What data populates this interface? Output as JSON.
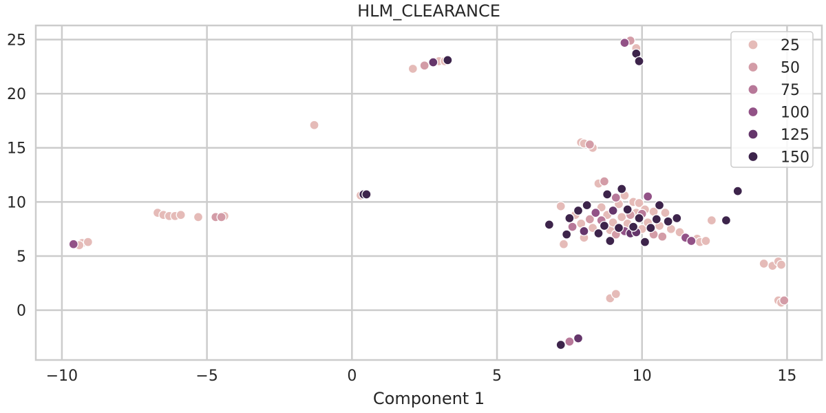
{
  "chart_data": {
    "type": "scatter",
    "title": "HLM_CLEARANCE",
    "xlabel": "Component 1",
    "ylabel": "",
    "xlim": [
      -10.9,
      16.2
    ],
    "ylim": [
      -4.6,
      26.3
    ],
    "xticks": [
      -10,
      -5,
      0,
      5,
      10,
      15
    ],
    "xtick_labels": [
      "−10",
      "−5",
      "0",
      "5",
      "10",
      "15"
    ],
    "yticks": [
      0,
      5,
      10,
      15,
      20,
      25
    ],
    "ytick_labels": [
      "0",
      "5",
      "10",
      "15",
      "20",
      "25"
    ],
    "grid": true,
    "legend_position": "top-right",
    "legend": [
      {
        "label": "25",
        "value": 25
      },
      {
        "label": "50",
        "value": 50
      },
      {
        "label": "75",
        "value": 75
      },
      {
        "label": "100",
        "value": 100
      },
      {
        "label": "125",
        "value": 125
      },
      {
        "label": "150",
        "value": 150
      }
    ],
    "points": [
      [
        -9.6,
        6.1,
        100
      ],
      [
        -9.3,
        6.2,
        25
      ],
      [
        -9.1,
        6.3,
        25
      ],
      [
        -9.4,
        6.0,
        25
      ],
      [
        -6.7,
        9.0,
        25
      ],
      [
        -6.5,
        8.8,
        25
      ],
      [
        -6.3,
        8.7,
        25
      ],
      [
        -6.1,
        8.7,
        25
      ],
      [
        -5.9,
        8.8,
        25
      ],
      [
        -5.3,
        8.6,
        25
      ],
      [
        -4.7,
        8.6,
        50
      ],
      [
        -4.5,
        8.6,
        50
      ],
      [
        -4.4,
        8.7,
        25
      ],
      [
        -1.3,
        17.1,
        25
      ],
      [
        0.3,
        10.6,
        25
      ],
      [
        0.4,
        10.7,
        150
      ],
      [
        0.5,
        10.7,
        150
      ],
      [
        2.1,
        22.3,
        25
      ],
      [
        2.5,
        22.6,
        50
      ],
      [
        2.8,
        22.9,
        125
      ],
      [
        3.0,
        23.0,
        25
      ],
      [
        3.2,
        23.0,
        25
      ],
      [
        3.3,
        23.1,
        150
      ],
      [
        9.4,
        24.7,
        100
      ],
      [
        9.6,
        24.9,
        50
      ],
      [
        9.8,
        24.2,
        25
      ],
      [
        9.8,
        23.7,
        150
      ],
      [
        9.9,
        23.0,
        150
      ],
      [
        7.9,
        15.5,
        25
      ],
      [
        8.0,
        15.4,
        25
      ],
      [
        8.2,
        15.3,
        50
      ],
      [
        8.3,
        15.0,
        25
      ],
      [
        6.8,
        7.9,
        150
      ],
      [
        7.2,
        9.6,
        25
      ],
      [
        7.3,
        6.1,
        25
      ],
      [
        7.4,
        7.0,
        150
      ],
      [
        7.5,
        8.5,
        150
      ],
      [
        7.6,
        7.7,
        75
      ],
      [
        7.7,
        8.8,
        25
      ],
      [
        7.8,
        9.2,
        150
      ],
      [
        7.9,
        8.0,
        25
      ],
      [
        8.0,
        7.3,
        125
      ],
      [
        8.0,
        6.7,
        25
      ],
      [
        8.1,
        9.7,
        150
      ],
      [
        8.2,
        8.4,
        50
      ],
      [
        8.3,
        7.6,
        25
      ],
      [
        8.4,
        9.0,
        100
      ],
      [
        8.5,
        7.1,
        150
      ],
      [
        8.5,
        11.7,
        25
      ],
      [
        8.6,
        8.3,
        75
      ],
      [
        8.6,
        9.5,
        25
      ],
      [
        8.7,
        7.8,
        150
      ],
      [
        8.7,
        11.9,
        50
      ],
      [
        8.8,
        8.8,
        25
      ],
      [
        8.8,
        10.7,
        150
      ],
      [
        8.9,
        6.4,
        150
      ],
      [
        8.9,
        7.4,
        25
      ],
      [
        9.0,
        9.2,
        125
      ],
      [
        9.0,
        8.1,
        25
      ],
      [
        9.1,
        7.0,
        50
      ],
      [
        9.1,
        10.4,
        75
      ],
      [
        9.2,
        9.8,
        25
      ],
      [
        9.2,
        7.6,
        150
      ],
      [
        9.3,
        11.2,
        150
      ],
      [
        9.3,
        8.6,
        25
      ],
      [
        9.4,
        7.3,
        100
      ],
      [
        9.4,
        10.6,
        25
      ],
      [
        9.5,
        8.0,
        25
      ],
      [
        9.5,
        9.3,
        150
      ],
      [
        9.6,
        7.1,
        125
      ],
      [
        9.6,
        8.8,
        50
      ],
      [
        9.7,
        10.0,
        25
      ],
      [
        9.7,
        7.7,
        150
      ],
      [
        9.8,
        9.0,
        25
      ],
      [
        9.8,
        7.2,
        125
      ],
      [
        9.9,
        8.5,
        150
      ],
      [
        9.9,
        9.9,
        25
      ],
      [
        10.0,
        7.5,
        25
      ],
      [
        10.0,
        8.9,
        75
      ],
      [
        10.1,
        6.3,
        150
      ],
      [
        10.1,
        9.3,
        25
      ],
      [
        10.2,
        10.5,
        100
      ],
      [
        10.2,
        8.1,
        25
      ],
      [
        10.3,
        7.6,
        150
      ],
      [
        10.4,
        9.1,
        25
      ],
      [
        10.4,
        7.0,
        50
      ],
      [
        10.5,
        8.4,
        150
      ],
      [
        10.6,
        9.7,
        150
      ],
      [
        10.6,
        7.8,
        25
      ],
      [
        10.7,
        6.8,
        50
      ],
      [
        10.8,
        9.0,
        25
      ],
      [
        10.9,
        8.2,
        150
      ],
      [
        11.0,
        7.5,
        25
      ],
      [
        11.2,
        8.5,
        150
      ],
      [
        11.3,
        7.2,
        25
      ],
      [
        11.5,
        6.7,
        100
      ],
      [
        11.7,
        6.4,
        100
      ],
      [
        11.9,
        6.6,
        25
      ],
      [
        12.0,
        6.3,
        25
      ],
      [
        12.2,
        6.4,
        25
      ],
      [
        12.4,
        8.3,
        25
      ],
      [
        12.9,
        8.3,
        150
      ],
      [
        13.3,
        11.0,
        150
      ],
      [
        14.2,
        4.3,
        25
      ],
      [
        14.5,
        4.1,
        25
      ],
      [
        14.7,
        4.5,
        25
      ],
      [
        14.8,
        4.2,
        25
      ],
      [
        14.7,
        0.9,
        25
      ],
      [
        14.9,
        0.9,
        50
      ],
      [
        14.8,
        0.7,
        25
      ],
      [
        8.9,
        1.1,
        25
      ],
      [
        9.1,
        1.5,
        25
      ],
      [
        7.2,
        -3.2,
        150
      ],
      [
        7.5,
        -2.9,
        75
      ],
      [
        7.8,
        -2.6,
        125
      ]
    ]
  }
}
